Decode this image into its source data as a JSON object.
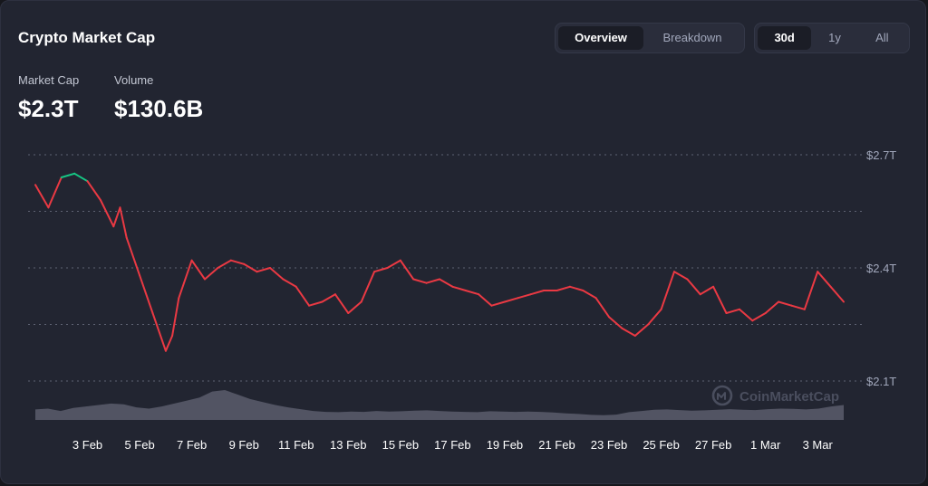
{
  "header": {
    "title": "Crypto Market Cap"
  },
  "tabs": [
    {
      "label": "Overview",
      "active": true
    },
    {
      "label": "Breakdown",
      "active": false
    }
  ],
  "ranges": [
    {
      "label": "30d",
      "active": true
    },
    {
      "label": "1y",
      "active": false
    },
    {
      "label": "All",
      "active": false
    }
  ],
  "stats": {
    "market_cap": {
      "label": "Market Cap",
      "value": "$2.3T"
    },
    "volume": {
      "label": "Volume",
      "value": "$130.6B"
    }
  },
  "watermark": {
    "text": "CoinMarketCap",
    "icon": "coinmarketcap-logo-icon"
  },
  "colors": {
    "down": "#ea3943",
    "up": "#16c784",
    "volume": "#5a5d6c",
    "grid": "#5e6272"
  },
  "chart_data": {
    "type": "line",
    "title": "Crypto Market Cap",
    "y_unit": "trillion USD",
    "ylim": [
      2.1,
      2.7
    ],
    "yticks": [
      {
        "value": 2.7,
        "label": "$2.7T"
      },
      {
        "value": 2.4,
        "label": "$2.4T"
      },
      {
        "value": 2.1,
        "label": "$2.1T"
      }
    ],
    "xlim": [
      "2025-02-01",
      "2025-03-04"
    ],
    "x_tick_labels": [
      "3 Feb",
      "5 Feb",
      "7 Feb",
      "9 Feb",
      "11 Feb",
      "13 Feb",
      "15 Feb",
      "17 Feb",
      "19 Feb",
      "21 Feb",
      "23 Feb",
      "25 Feb",
      "27 Feb",
      "1 Mar",
      "3 Mar"
    ],
    "x_tick_dates": [
      "2025-02-03",
      "2025-02-05",
      "2025-02-07",
      "2025-02-09",
      "2025-02-11",
      "2025-02-13",
      "2025-02-15",
      "2025-02-17",
      "2025-02-19",
      "2025-02-21",
      "2025-02-23",
      "2025-02-25",
      "2025-02-27",
      "2025-03-01",
      "2025-03-03"
    ],
    "gridlines": true,
    "series": [
      {
        "x": [
          "2025-02-01",
          "2025-02-01T12:00",
          "2025-02-02",
          "2025-02-02T12:00",
          "2025-02-03",
          "2025-02-03T12:00",
          "2025-02-04",
          "2025-02-04T06:00",
          "2025-02-04T12:00",
          "2025-02-05",
          "2025-02-05T12:00",
          "2025-02-06",
          "2025-02-06T06:00",
          "2025-02-06T12:00",
          "2025-02-07",
          "2025-02-07T12:00",
          "2025-02-08",
          "2025-02-08T12:00",
          "2025-02-09",
          "2025-02-09T12:00",
          "2025-02-10",
          "2025-02-10T12:00",
          "2025-02-11",
          "2025-02-11T12:00",
          "2025-02-12",
          "2025-02-12T12:00",
          "2025-02-13",
          "2025-02-13T12:00",
          "2025-02-14",
          "2025-02-14T12:00",
          "2025-02-15",
          "2025-02-15T12:00",
          "2025-02-16",
          "2025-02-16T12:00",
          "2025-02-17",
          "2025-02-17T12:00",
          "2025-02-18",
          "2025-02-18T12:00",
          "2025-02-19",
          "2025-02-19T12:00",
          "2025-02-20",
          "2025-02-20T12:00",
          "2025-02-21",
          "2025-02-21T12:00",
          "2025-02-22",
          "2025-02-22T12:00",
          "2025-02-23",
          "2025-02-23T12:00",
          "2025-02-24",
          "2025-02-24T12:00",
          "2025-02-25",
          "2025-02-25T12:00",
          "2025-02-26",
          "2025-02-26T12:00",
          "2025-02-27",
          "2025-02-27T12:00",
          "2025-02-28",
          "2025-02-28T12:00",
          "2025-03-01",
          "2025-03-01T12:00",
          "2025-03-02",
          "2025-03-02T12:00",
          "2025-03-03",
          "2025-03-03T12:00",
          "2025-03-04"
        ],
        "values": [
          2.62,
          2.56,
          2.64,
          2.65,
          2.63,
          2.58,
          2.51,
          2.56,
          2.48,
          2.38,
          2.28,
          2.18,
          2.22,
          2.32,
          2.42,
          2.37,
          2.4,
          2.42,
          2.41,
          2.39,
          2.4,
          2.37,
          2.35,
          2.3,
          2.31,
          2.33,
          2.28,
          2.31,
          2.39,
          2.4,
          2.42,
          2.37,
          2.36,
          2.37,
          2.35,
          2.34,
          2.33,
          2.3,
          2.31,
          2.32,
          2.33,
          2.34,
          2.34,
          2.35,
          2.34,
          2.32,
          2.27,
          2.24,
          2.22,
          2.25,
          2.29,
          2.39,
          2.37,
          2.33,
          2.35,
          2.28,
          2.29,
          2.26,
          2.28,
          2.31,
          2.3,
          2.29,
          2.39,
          2.35,
          2.31
        ]
      }
    ],
    "volume_profile": [
      0.35,
      0.38,
      0.3,
      0.4,
      0.45,
      0.5,
      0.55,
      0.52,
      0.42,
      0.38,
      0.45,
      0.55,
      0.65,
      0.75,
      0.95,
      1.0,
      0.85,
      0.7,
      0.6,
      0.5,
      0.42,
      0.36,
      0.3,
      0.27,
      0.26,
      0.28,
      0.27,
      0.3,
      0.28,
      0.29,
      0.31,
      0.32,
      0.3,
      0.28,
      0.27,
      0.26,
      0.29,
      0.28,
      0.27,
      0.28,
      0.27,
      0.25,
      0.22,
      0.2,
      0.17,
      0.16,
      0.18,
      0.26,
      0.3,
      0.34,
      0.35,
      0.33,
      0.31,
      0.32,
      0.34,
      0.36,
      0.34,
      0.33,
      0.36,
      0.38,
      0.37,
      0.35,
      0.38,
      0.45,
      0.5
    ]
  }
}
